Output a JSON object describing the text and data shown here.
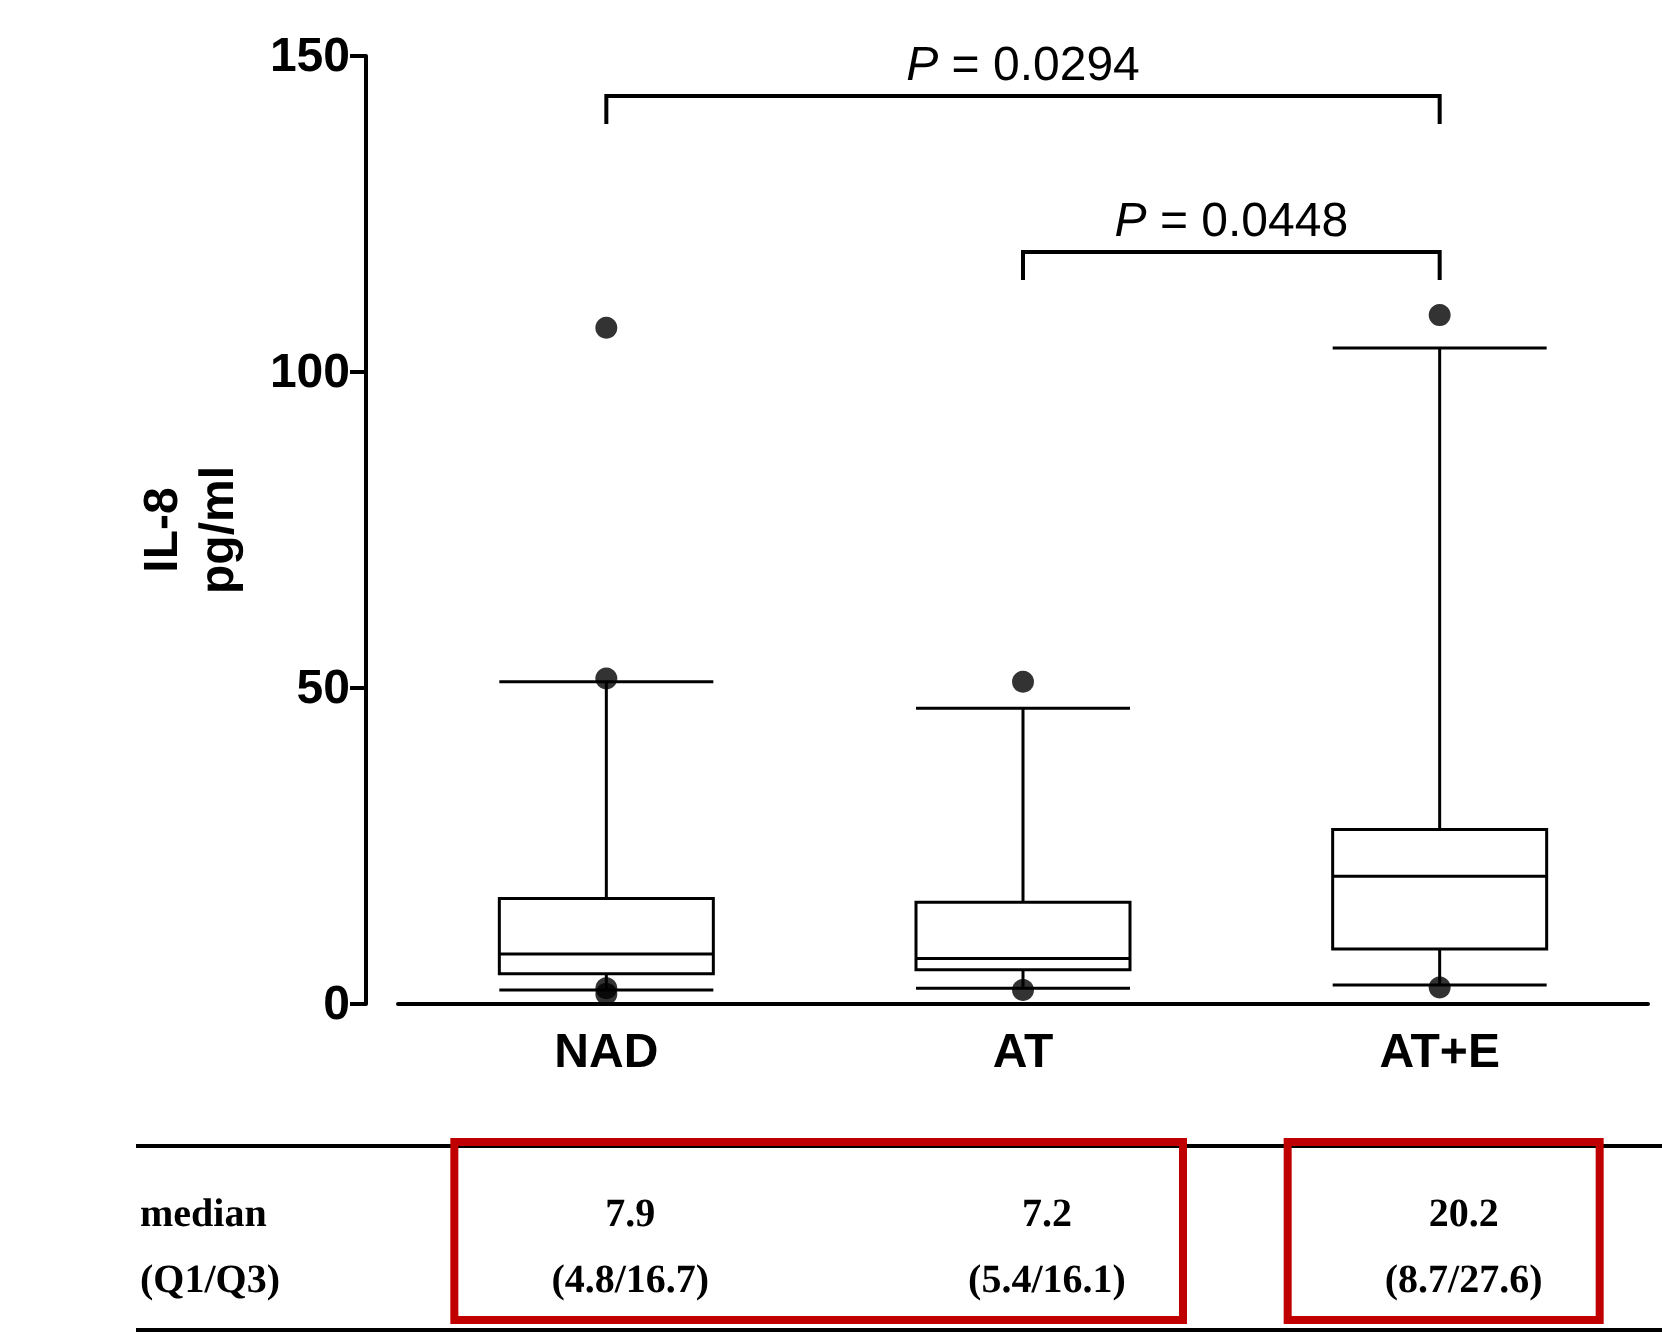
{
  "chart_data": {
    "type": "box",
    "ylabel": "IL-8 pg/ml",
    "categories": [
      "NAD",
      "AT",
      "AT+E"
    ],
    "color": "#000000",
    "boxes": [
      {
        "low": 2.2,
        "q1": 4.8,
        "median": 7.9,
        "q3": 16.7,
        "high": 51
      },
      {
        "low": 2.5,
        "q1": 5.4,
        "median": 7.2,
        "q3": 16.1,
        "high": 46.8
      },
      {
        "low": 3,
        "q1": 8.7,
        "median": 20.2,
        "q3": 27.6,
        "high": 103.8
      }
    ],
    "series": [
      {
        "type": "scatter",
        "color": "#000000",
        "x": [
          "NAD",
          "NAD",
          "NAD",
          "NAD",
          "AT",
          "AT",
          "AT+E",
          "AT+E"
        ],
        "values": [
          107,
          51.5,
          1.6,
          2.5,
          51,
          2.2,
          109,
          2.6
        ]
      }
    ],
    "marker": "circle",
    "ylim": [
      0,
      150
    ],
    "yticks": [
      0,
      50,
      100,
      150
    ],
    "annotations": [
      "P = 0.0294",
      "P = 0.0448",
      "median",
      "(Q1/Q3)",
      "7.9",
      "(4.8/16.7)",
      "7.2",
      "(5.4/16.1)",
      "20.2",
      "(8.7/27.6)"
    ]
  }
}
